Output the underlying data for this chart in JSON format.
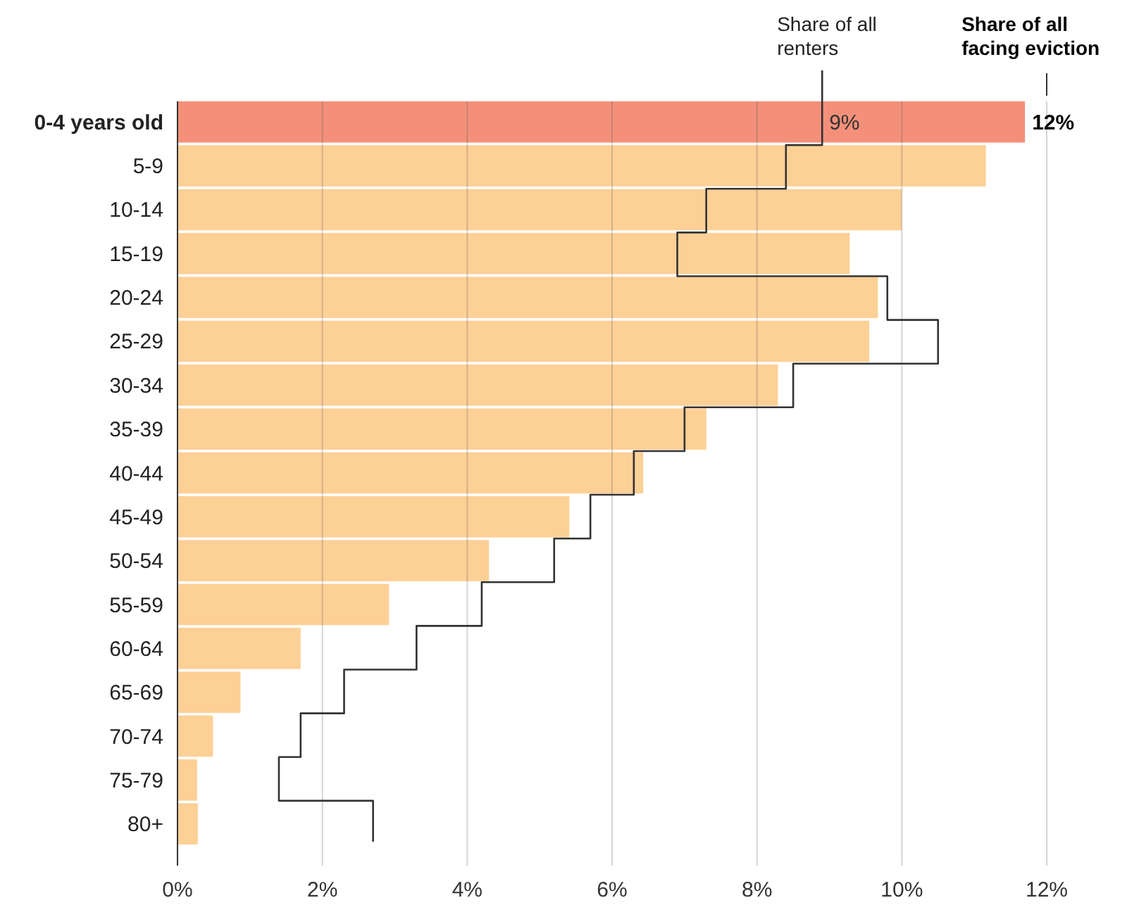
{
  "chart_data": {
    "type": "bar",
    "orientation": "horizontal",
    "categories": [
      "0-4 years old",
      "5-9",
      "10-14",
      "15-19",
      "20-24",
      "25-29",
      "30-34",
      "35-39",
      "40-44",
      "45-49",
      "50-54",
      "55-59",
      "60-64",
      "65-69",
      "70-74",
      "75-79",
      "80+"
    ],
    "series": [
      {
        "name": "Share of all facing eviction",
        "colors": [
          "#f4907a",
          "#fdd096",
          "#fdd096",
          "#fdd096",
          "#fdd096",
          "#fdd096",
          "#fdd096",
          "#fdd096",
          "#fdd096",
          "#fdd096",
          "#fdd096",
          "#fdd096",
          "#fdd096",
          "#fdd096",
          "#fdd096",
          "#fdd096",
          "#fdd096"
        ],
        "values": [
          11.7,
          11.16,
          10.0,
          9.28,
          9.67,
          9.55,
          8.29,
          7.3,
          6.43,
          5.41,
          4.3,
          2.92,
          1.7,
          0.87,
          0.49,
          0.27,
          0.28
        ],
        "value_labels": [
          "12%",
          null,
          null,
          null,
          null,
          null,
          null,
          null,
          null,
          null,
          null,
          null,
          null,
          null,
          null,
          null,
          null
        ]
      },
      {
        "type": "step",
        "name": "Share of all renters",
        "color": "#333333",
        "values": [
          8.9,
          8.4,
          7.3,
          6.9,
          9.8,
          10.5,
          8.5,
          7.0,
          6.3,
          5.7,
          5.2,
          4.2,
          3.3,
          2.3,
          1.7,
          1.4,
          2.7
        ],
        "value_labels": [
          "9%",
          null,
          null,
          null,
          null,
          null,
          null,
          null,
          null,
          null,
          null,
          null,
          null,
          null,
          null,
          null,
          null
        ]
      }
    ],
    "xlim": [
      0,
      12
    ],
    "xticks": [
      {
        "value": 0,
        "label": "0%"
      },
      {
        "value": 2,
        "label": "2%"
      },
      {
        "value": 4,
        "label": "4%"
      },
      {
        "value": 6,
        "label": "6%"
      },
      {
        "value": 8,
        "label": "8%"
      },
      {
        "value": 10,
        "label": "10%"
      },
      {
        "value": 12,
        "label": "12%"
      }
    ],
    "grid": "x"
  }
}
